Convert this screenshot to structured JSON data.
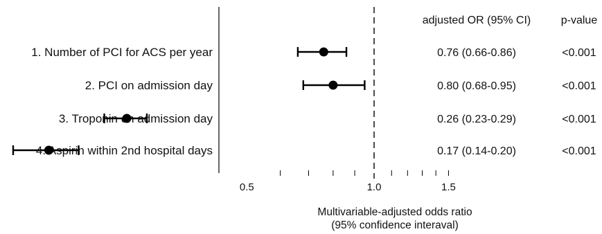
{
  "chart_data": {
    "type": "forest",
    "xlabel": [
      "Multivariable-adjusted odds ratio",
      "(95% confidence interaval)"
    ],
    "x_scale": "log",
    "xlim": [
      0.1,
      1.6
    ],
    "reference_line": 1.0,
    "tick_labels": [
      {
        "value": 0.5,
        "label": "0.5"
      },
      {
        "value": 1.0,
        "label": "1.0"
      },
      {
        "value": 1.5,
        "label": "1.5"
      }
    ],
    "minor_ticks": [
      0.6,
      0.7,
      0.8,
      0.9,
      1.1,
      1.2,
      1.3,
      1.4,
      1.5
    ],
    "column_headers": {
      "or": "adjusted OR (95% CI)",
      "p": "p-value"
    },
    "rows": [
      {
        "label": "1. Number of PCI for ACS per year",
        "or": 0.76,
        "lo": 0.66,
        "hi": 0.86,
        "or_text": "0.76 (0.66-0.86)",
        "p_text": "<0.001"
      },
      {
        "label": "2. PCI on admission day",
        "or": 0.8,
        "lo": 0.68,
        "hi": 0.95,
        "or_text": "0.80 (0.68-0.95)",
        "p_text": "<0.001"
      },
      {
        "label": "3. Troponin on admission day",
        "or": 0.26,
        "lo": 0.23,
        "hi": 0.29,
        "or_text": "0.26 (0.23-0.29)",
        "p_text": "<0.001"
      },
      {
        "label": "4. Aspirin within 2nd hospital days",
        "or": 0.17,
        "lo": 0.14,
        "hi": 0.2,
        "or_text": "0.17 (0.14-0.20)",
        "p_text": "<0.001"
      }
    ],
    "colors": {
      "marker": "#000000",
      "axis": "#000000",
      "text": "#111111"
    }
  }
}
